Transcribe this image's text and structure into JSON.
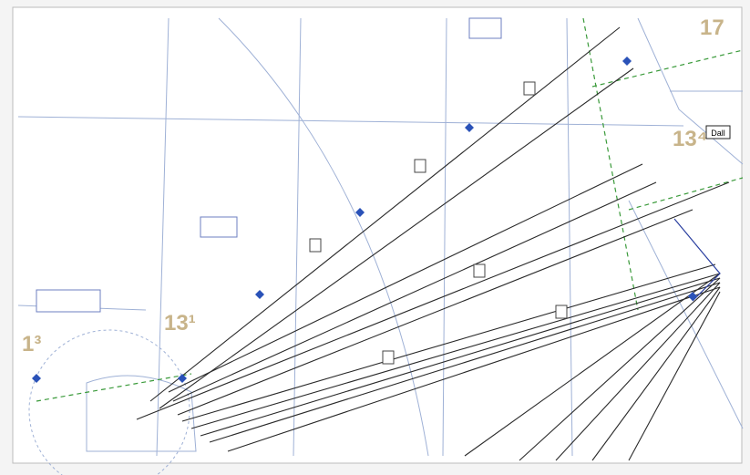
{
  "map_labels": {
    "sector_west": "1³",
    "sector_center": "13¹",
    "sector_east": "13⁴",
    "sector_north": "17",
    "fix_box": "Dall"
  }
}
